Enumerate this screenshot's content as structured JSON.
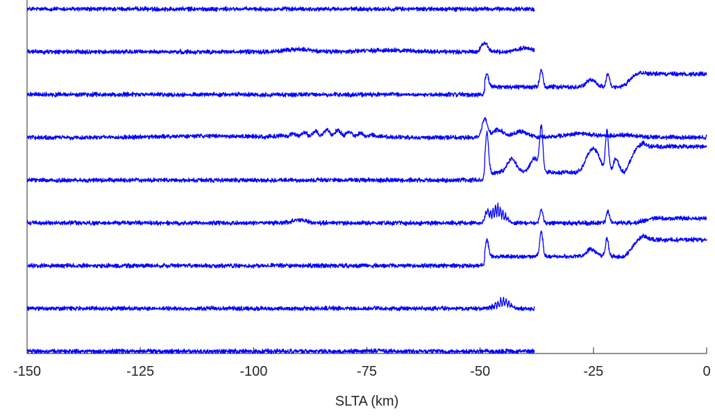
{
  "chart_data": {
    "type": "line",
    "xlabel": "SLTA (km)",
    "xlim": [
      -150,
      0
    ],
    "x_ticks": [
      -150,
      -125,
      -100,
      -75,
      -50,
      -25,
      0
    ],
    "x_tick_labels": [
      "-150",
      "-125",
      "-100",
      "-75",
      "-50",
      "-25",
      "0"
    ],
    "y_ticks_visible": false,
    "grid": false,
    "legend": false,
    "series_color": "#0000ff",
    "series": [
      {
        "x_range": [
          -150,
          -38
        ],
        "features": []
      },
      {
        "x_range": [
          -150,
          -38
        ],
        "features": [
          {
            "kind": "hump",
            "center": -90,
            "width": 3,
            "height": 0.15
          },
          {
            "kind": "hump",
            "center": -70,
            "width": 6,
            "height": 0.1
          },
          {
            "kind": "spike",
            "center": -49,
            "width": 0.7,
            "height": 0.6
          },
          {
            "kind": "hump",
            "center": -40,
            "width": 1.5,
            "height": 0.25
          }
        ]
      },
      {
        "x_range": [
          -150,
          0
        ],
        "features": [
          {
            "kind": "spike",
            "center": -48.5,
            "width": 0.35,
            "height": 0.9
          },
          {
            "kind": "step",
            "start": -49,
            "level": 0.5
          },
          {
            "kind": "spike",
            "center": -36.5,
            "width": 0.35,
            "height": 1.1
          },
          {
            "kind": "hump",
            "center": -25.5,
            "width": 1,
            "height": 0.5
          },
          {
            "kind": "spike",
            "center": -21.8,
            "width": 0.35,
            "height": 0.9
          },
          {
            "kind": "rise",
            "start": -18,
            "level": 0.85
          },
          {
            "kind": "hump",
            "center": -16,
            "width": 1.5,
            "height": 0.3
          }
        ]
      },
      {
        "x_range": [
          -150,
          0
        ],
        "features": [
          {
            "kind": "hump",
            "center": -110,
            "width": 10,
            "height": 0.08
          },
          {
            "kind": "oscillation",
            "start": -97,
            "end": -69,
            "period": 2.5,
            "amplitude": 0.18,
            "level": 0.35
          },
          {
            "kind": "spike",
            "center": -49,
            "width": 0.6,
            "height": 1.2
          },
          {
            "kind": "hump",
            "center": -46,
            "width": 1.2,
            "height": 0.5
          },
          {
            "kind": "hump",
            "center": -41,
            "width": 1.5,
            "height": 0.4
          },
          {
            "kind": "hump",
            "center": -28,
            "width": 3,
            "height": 0.25
          },
          {
            "kind": "hump",
            "center": -18,
            "width": 3,
            "height": 0.15
          }
        ]
      },
      {
        "x_range": [
          -150,
          0
        ],
        "features": [
          {
            "kind": "spike",
            "center": -48.5,
            "width": 0.35,
            "height": 2.6
          },
          {
            "kind": "step",
            "start": -49,
            "level": 0.5
          },
          {
            "kind": "hump",
            "center": -43,
            "width": 1,
            "height": 0.9
          },
          {
            "kind": "hump",
            "center": -38,
            "width": 1,
            "height": 0.9
          },
          {
            "kind": "spike",
            "center": -36.5,
            "width": 0.35,
            "height": 2.8
          },
          {
            "kind": "hump",
            "center": -25.5,
            "width": 1.2,
            "height": 1.4
          },
          {
            "kind": "hump",
            "center": -24,
            "width": 0.8,
            "height": 0.6
          },
          {
            "kind": "spike",
            "center": -22,
            "width": 0.35,
            "height": 2.7
          },
          {
            "kind": "hump",
            "center": -20,
            "width": 0.6,
            "height": 0.9
          },
          {
            "kind": "rise",
            "start": -18,
            "level": 1.7
          },
          {
            "kind": "hump",
            "center": -15.5,
            "width": 1.2,
            "height": 0.5
          }
        ]
      },
      {
        "x_range": [
          -150,
          0
        ],
        "features": [
          {
            "kind": "hump",
            "center": -90,
            "width": 1.5,
            "height": 0.2
          },
          {
            "kind": "oscillation",
            "start": -49.5,
            "end": -43,
            "period": 0.55,
            "amplitude": 0.45,
            "level": 0.9
          },
          {
            "kind": "spike",
            "center": -48.5,
            "width": 0.4,
            "height": 0.5
          },
          {
            "kind": "spike",
            "center": -36.5,
            "width": 0.35,
            "height": 0.9
          },
          {
            "kind": "spike",
            "center": -21.8,
            "width": 0.35,
            "height": 0.8
          },
          {
            "kind": "rise",
            "start": -16,
            "level": 0.3
          }
        ]
      },
      {
        "x_range": [
          -150,
          0
        ],
        "features": [
          {
            "kind": "spike",
            "center": -48.5,
            "width": 0.35,
            "height": 1.1
          },
          {
            "kind": "step",
            "start": -49,
            "level": 0.6
          },
          {
            "kind": "spike",
            "center": -36.5,
            "width": 0.35,
            "height": 1.6
          },
          {
            "kind": "hump",
            "center": -25.5,
            "width": 1,
            "height": 0.5
          },
          {
            "kind": "spike",
            "center": -22,
            "width": 0.35,
            "height": 1.2
          },
          {
            "kind": "rise",
            "start": -18,
            "level": 1.1
          },
          {
            "kind": "hump",
            "center": -15,
            "width": 1.5,
            "height": 0.3
          }
        ]
      },
      {
        "x_range": [
          -150,
          -38
        ],
        "features": [
          {
            "kind": "oscillation",
            "start": -48,
            "end": -42,
            "period": 0.6,
            "amplitude": 0.3,
            "level": 0.45
          }
        ]
      },
      {
        "x_range": [
          -150,
          -38
        ],
        "features": []
      }
    ]
  }
}
